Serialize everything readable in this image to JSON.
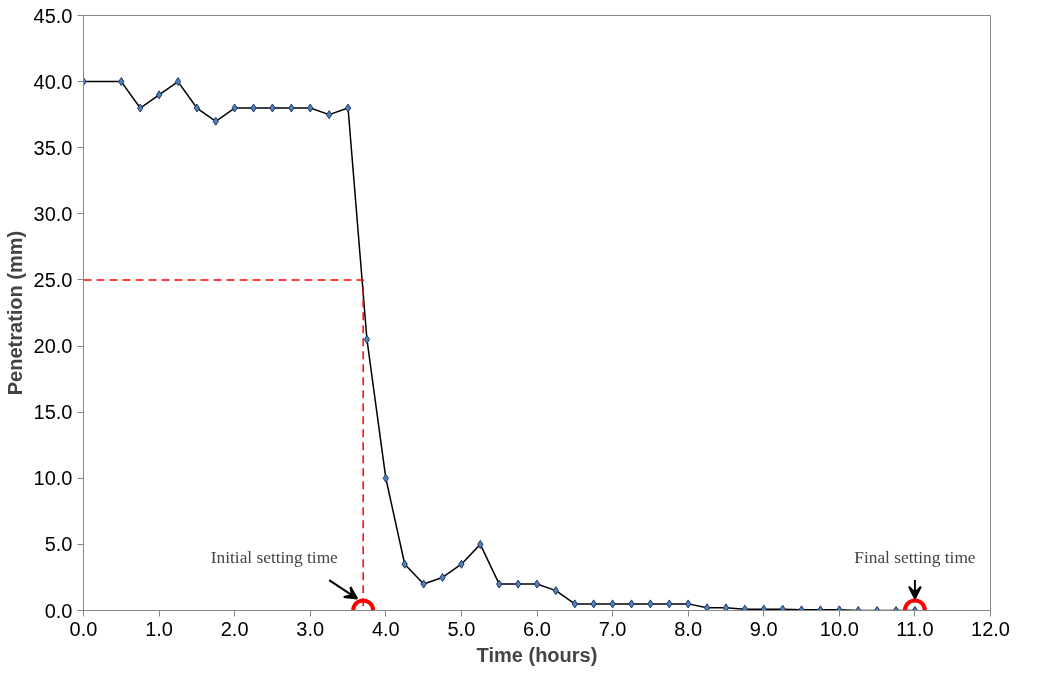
{
  "chart_data": {
    "type": "line",
    "xlabel": "Time (hours)",
    "ylabel": "Penetration (mm)",
    "xlim": [
      0,
      12
    ],
    "ylim": [
      0,
      45
    ],
    "xticks": [
      {
        "value": 0,
        "label": "0.0"
      },
      {
        "value": 1,
        "label": "1.0"
      },
      {
        "value": 2,
        "label": "2.0"
      },
      {
        "value": 3,
        "label": "3.0"
      },
      {
        "value": 4,
        "label": "4.0"
      },
      {
        "value": 5,
        "label": "5.0"
      },
      {
        "value": 6,
        "label": "6.0"
      },
      {
        "value": 7,
        "label": "7.0"
      },
      {
        "value": 8,
        "label": "8.0"
      },
      {
        "value": 9,
        "label": "9.0"
      },
      {
        "value": 10,
        "label": "10.0"
      },
      {
        "value": 11,
        "label": "11.0"
      },
      {
        "value": 12,
        "label": "12.0"
      }
    ],
    "yticks": [
      {
        "value": 0,
        "label": "0.0"
      },
      {
        "value": 5,
        "label": "5.0"
      },
      {
        "value": 10,
        "label": "10.0"
      },
      {
        "value": 15,
        "label": "15.0"
      },
      {
        "value": 20,
        "label": "20.0"
      },
      {
        "value": 25,
        "label": "25.0"
      },
      {
        "value": 30,
        "label": "30.0"
      },
      {
        "value": 35,
        "label": "35.0"
      },
      {
        "value": 40,
        "label": "40.0"
      },
      {
        "value": 45,
        "label": "45.0"
      }
    ],
    "grid": false,
    "series": [
      {
        "color": "#000000",
        "marker": "diamond",
        "line_style": "solid",
        "x": [
          0,
          0.5,
          0.75,
          1.0,
          1.25,
          1.5,
          1.75,
          2.0,
          2.25,
          2.5,
          2.75,
          3.0,
          3.25,
          3.5,
          3.75,
          4.0,
          4.25,
          4.5,
          4.75,
          5.0,
          5.25,
          5.5,
          5.75,
          6.0,
          6.25,
          6.5,
          6.75,
          7.0,
          7.25,
          7.5,
          7.75,
          8.0,
          8.25,
          8.5,
          8.75,
          9.0,
          9.25,
          9.5,
          9.75,
          10.0,
          10.25,
          10.5,
          10.75,
          11.0
        ],
        "values": [
          40,
          40,
          38,
          39,
          40,
          38,
          37,
          38,
          38,
          38,
          38,
          38,
          37.5,
          38,
          20.5,
          10,
          3.5,
          2,
          2.5,
          3.5,
          5,
          2,
          2,
          2,
          1.5,
          0.5,
          0.5,
          0.5,
          0.5,
          0.5,
          0.5,
          0.5,
          0.2,
          0.2,
          0.1,
          0.1,
          0.1,
          0.05,
          0.05,
          0.05,
          0,
          0,
          0,
          0
        ]
      },
      {
        "type": "line",
        "color": "#ff0000",
        "marker": "none",
        "line_style": "dashed",
        "x": [
          0,
          3.7,
          3.7
        ],
        "values": [
          25,
          25,
          0
        ]
      },
      {
        "type": "scatter",
        "color": "#ff0000",
        "marker": "circle",
        "x": [
          3.7,
          11.0
        ],
        "values": [
          0,
          0
        ]
      }
    ],
    "annotations": [
      {
        "text": "Initial setting time",
        "x": 3.7,
        "y": 0
      },
      {
        "text": "Final setting time",
        "x": 11.0,
        "y": 0
      }
    ]
  }
}
